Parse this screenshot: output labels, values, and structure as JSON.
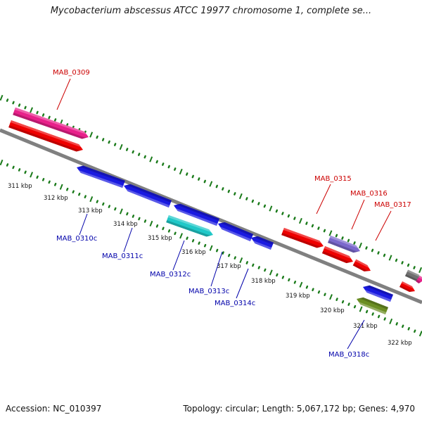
{
  "title": "Mycobacterium abscessus ATCC 19977 chromosome 1, complete se...",
  "footer": {
    "accession": "Accession: NC_010397",
    "summary": "Topology: circular; Length: 5,067,172 bp; Genes: 4,970"
  },
  "colors": {
    "backbone": "#808080",
    "tick": "#1a7a1a",
    "forward_label": "#cc0000",
    "reverse_label": "#0000aa"
  },
  "kbp_labels": [
    "311 kbp",
    "312 kbp",
    "313 kbp",
    "314 kbp",
    "315 kbp",
    "316 kbp",
    "317 kbp",
    "318 kbp",
    "319 kbp",
    "320 kbp",
    "321 kbp",
    "322 kbp"
  ],
  "genes": [
    {
      "id": "MAB_0309",
      "label": "MAB_0309",
      "color": "#e8208a",
      "strand": "forward"
    },
    {
      "id": "fwd_red_1",
      "label": "",
      "color": "#ee0000",
      "strand": "forward"
    },
    {
      "id": "MAB_0310c",
      "label": "MAB_0310c",
      "color": "#1a1ae0",
      "strand": "reverse"
    },
    {
      "id": "MAB_0311c",
      "label": "MAB_0311c",
      "color": "#1a1ae0",
      "strand": "reverse"
    },
    {
      "id": "MAB_0312c",
      "label": "MAB_0312c",
      "color": "#20c8c8",
      "strand": "reverse"
    },
    {
      "id": "MAB_0313c",
      "label": "MAB_0313c",
      "color": "#1a1ae0",
      "strand": "reverse"
    },
    {
      "id": "MAB_0314c",
      "label": "MAB_0314c",
      "color": "#1a1ae0",
      "strand": "reverse"
    },
    {
      "id": "blue_small_1",
      "label": "",
      "color": "#1a1ae0",
      "strand": "reverse"
    },
    {
      "id": "MAB_0315",
      "label": "MAB_0315",
      "color": "#ee0000",
      "strand": "forward"
    },
    {
      "id": "MAB_0316",
      "label": "MAB_0316",
      "color": "#7b68cc",
      "strand": "forward"
    },
    {
      "id": "fwd_red_2",
      "label": "",
      "color": "#ee0000",
      "strand": "forward"
    },
    {
      "id": "MAB_0317",
      "label": "MAB_0317",
      "color": "#ee0000",
      "strand": "forward"
    },
    {
      "id": "blue_small_2",
      "label": "",
      "color": "#1a1ae0",
      "strand": "reverse"
    },
    {
      "id": "MAB_0318c",
      "label": "MAB_0318c",
      "color": "#6b8e23",
      "strand": "reverse"
    },
    {
      "id": "gray_gene",
      "label": "",
      "color": "#707070",
      "strand": "forward"
    },
    {
      "id": "pink_edge",
      "label": "",
      "color": "#e8208a",
      "strand": "forward"
    },
    {
      "id": "red_edge",
      "label": "",
      "color": "#ee0000",
      "strand": "forward"
    }
  ]
}
